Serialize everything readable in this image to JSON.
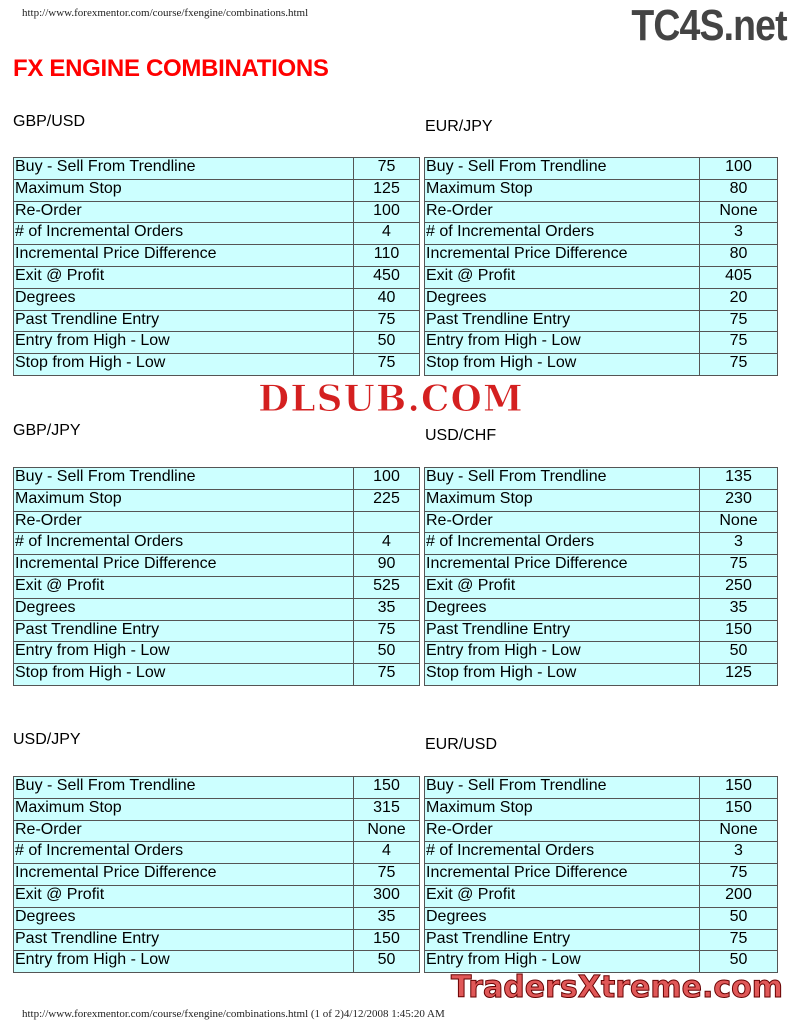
{
  "header": {
    "url": "http://www.forexmentor.com/course/fxengine/combinations.html",
    "logo": "TC4S.net",
    "title": "FX ENGINE COMBINATIONS"
  },
  "watermark": "DLSUB.COM",
  "tables": [
    {
      "pair": "GBP/USD",
      "rows": [
        [
          "Buy - Sell From Trendline",
          "75"
        ],
        [
          "Maximum Stop",
          "125"
        ],
        [
          "Re-Order",
          "100"
        ],
        [
          "# of Incremental Orders",
          "4"
        ],
        [
          "Incremental Price Difference",
          "110"
        ],
        [
          "Exit @ Profit",
          "450"
        ],
        [
          "Degrees",
          "40"
        ],
        [
          "Past Trendline Entry",
          "75"
        ],
        [
          "Entry from High - Low",
          "50"
        ],
        [
          "Stop from High - Low",
          "75"
        ]
      ]
    },
    {
      "pair": "EUR/JPY",
      "rows": [
        [
          "Buy - Sell From Trendline",
          "100"
        ],
        [
          "Maximum Stop",
          "80"
        ],
        [
          "Re-Order",
          "None"
        ],
        [
          "# of Incremental Orders",
          "3"
        ],
        [
          "Incremental Price Difference",
          "80"
        ],
        [
          "Exit @ Profit",
          "405"
        ],
        [
          "Degrees",
          "20"
        ],
        [
          "Past Trendline Entry",
          "75"
        ],
        [
          "Entry from High - Low",
          "75"
        ],
        [
          "Stop from High - Low",
          "75"
        ]
      ]
    },
    {
      "pair": "GBP/JPY",
      "rows": [
        [
          "Buy - Sell From Trendline",
          "100"
        ],
        [
          "Maximum Stop",
          "225"
        ],
        [
          "Re-Order",
          ""
        ],
        [
          "# of Incremental Orders",
          "4"
        ],
        [
          "Incremental Price Difference",
          "90"
        ],
        [
          "Exit @ Profit",
          "525"
        ],
        [
          "Degrees",
          "35"
        ],
        [
          "Past Trendline Entry",
          "75"
        ],
        [
          "Entry from High - Low",
          "50"
        ],
        [
          "Stop from High - Low",
          "75"
        ]
      ]
    },
    {
      "pair": "USD/CHF",
      "rows": [
        [
          "Buy - Sell From Trendline",
          "135"
        ],
        [
          "Maximum Stop",
          "230"
        ],
        [
          "Re-Order",
          "None"
        ],
        [
          "# of Incremental Orders",
          "3"
        ],
        [
          "Incremental Price Difference",
          "75"
        ],
        [
          "Exit @ Profit",
          "250"
        ],
        [
          "Degrees",
          "35"
        ],
        [
          "Past Trendline Entry",
          "150"
        ],
        [
          "Entry from High - Low",
          "50"
        ],
        [
          "Stop from High - Low",
          "125"
        ]
      ]
    },
    {
      "pair": "USD/JPY",
      "rows": [
        [
          "Buy - Sell From Trendline",
          "150"
        ],
        [
          "Maximum Stop",
          "315"
        ],
        [
          "Re-Order",
          "None"
        ],
        [
          "# of Incremental Orders",
          "4"
        ],
        [
          "Incremental Price Difference",
          "75"
        ],
        [
          "Exit @ Profit",
          "300"
        ],
        [
          "Degrees",
          "35"
        ],
        [
          "Past Trendline Entry",
          "150"
        ],
        [
          "Entry from High - Low",
          "50"
        ]
      ]
    },
    {
      "pair": "EUR/USD",
      "rows": [
        [
          "Buy - Sell From Trendline",
          "150"
        ],
        [
          "Maximum Stop",
          "150"
        ],
        [
          "Re-Order",
          "None"
        ],
        [
          "# of Incremental Orders",
          "3"
        ],
        [
          "Incremental Price Difference",
          "75"
        ],
        [
          "Exit @ Profit",
          "200"
        ],
        [
          "Degrees",
          "50"
        ],
        [
          "Past Trendline Entry",
          "75"
        ],
        [
          "Entry from High - Low",
          "50"
        ]
      ]
    }
  ],
  "footer": {
    "url": "http://www.forexmentor.com/course/fxengine/combinations.html (1 of 2)4/12/2008 1:45:20 AM",
    "logo": "TradersXtreme.com"
  }
}
